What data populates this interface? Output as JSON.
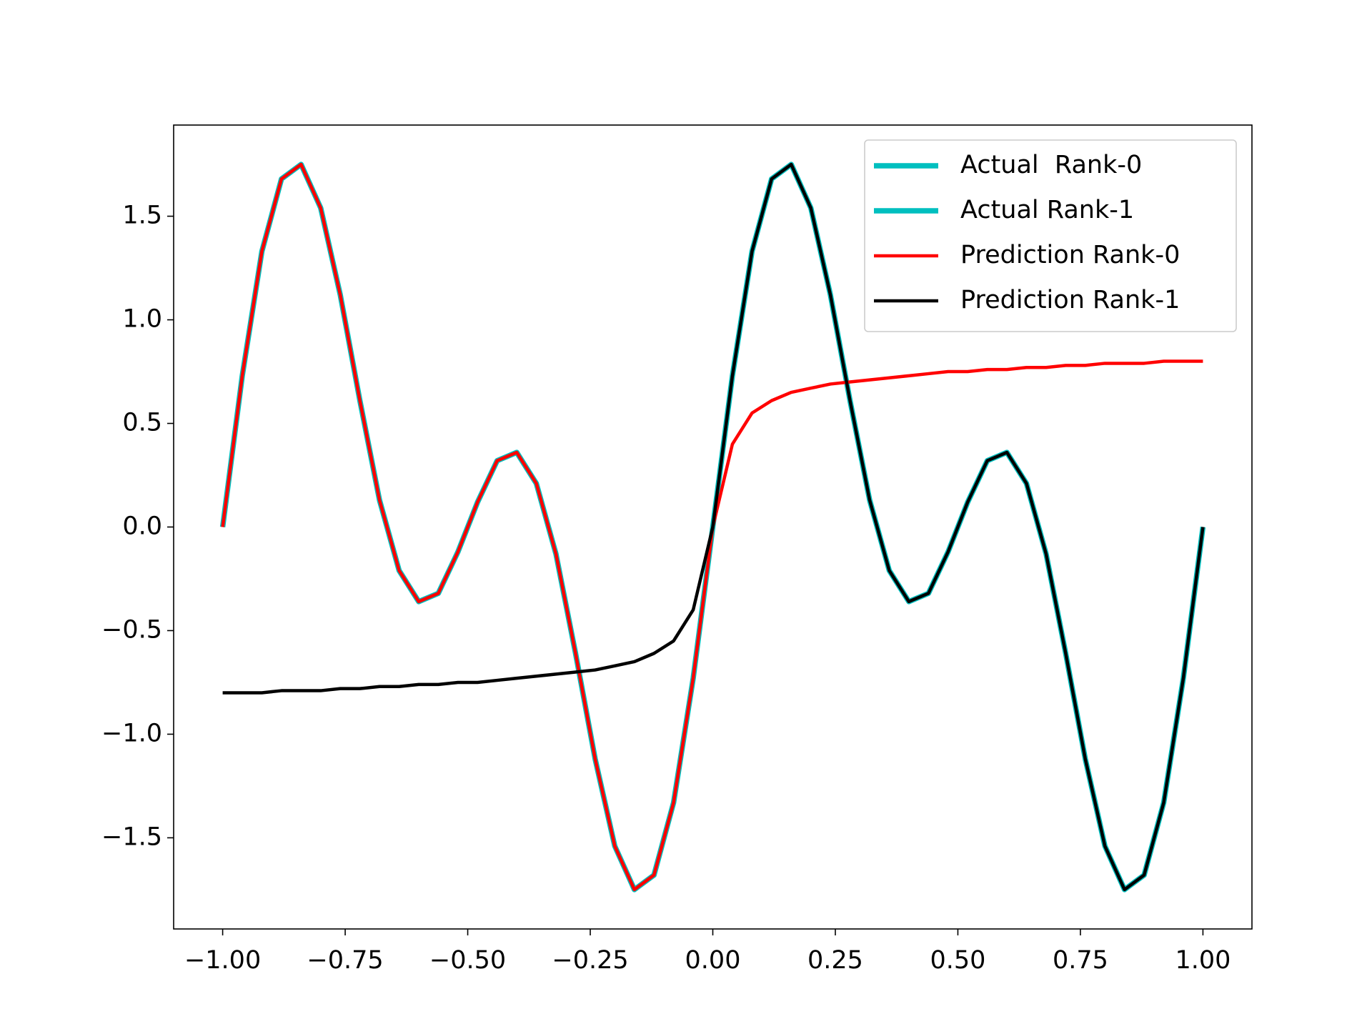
{
  "chart_data": {
    "type": "line",
    "x": [
      -1.0,
      -0.96,
      -0.92,
      -0.88,
      -0.84,
      -0.8,
      -0.76,
      -0.72,
      -0.68,
      -0.64,
      -0.6,
      -0.56,
      -0.52,
      -0.48,
      -0.44,
      -0.4,
      -0.36,
      -0.32,
      -0.28,
      -0.24,
      -0.2,
      -0.16,
      -0.12,
      -0.08,
      -0.04,
      0.0,
      0.04,
      0.08,
      0.12,
      0.16,
      0.2,
      0.24,
      0.28,
      0.32,
      0.36,
      0.4,
      0.44,
      0.48,
      0.52,
      0.56,
      0.6,
      0.64,
      0.68,
      0.72,
      0.76,
      0.8,
      0.84,
      0.88,
      0.92,
      0.96,
      1.0
    ],
    "series": [
      {
        "name": "Actual  Rank-0",
        "color": "#00bfbf",
        "linewidth": 7.5,
        "values": [
          0,
          0.73,
          1.33,
          1.68,
          1.75,
          1.54,
          1.12,
          0.61,
          0.13,
          -0.21,
          -0.36,
          -0.32,
          -0.12,
          0.12,
          0.32,
          0.36,
          0.21,
          -0.13,
          -0.61,
          -1.12,
          -1.54,
          -1.75,
          -1.68,
          -1.33,
          -0.73,
          0,
          null,
          null,
          null,
          null,
          null,
          null,
          null,
          null,
          null,
          null,
          null,
          null,
          null,
          null,
          null,
          null,
          null,
          null,
          null,
          null,
          null,
          null,
          null,
          null,
          null
        ]
      },
      {
        "name": "Actual Rank-1",
        "color": "#00bfbf",
        "linewidth": 7.5,
        "values": [
          null,
          null,
          null,
          null,
          null,
          null,
          null,
          null,
          null,
          null,
          null,
          null,
          null,
          null,
          null,
          null,
          null,
          null,
          null,
          null,
          null,
          null,
          null,
          null,
          null,
          0,
          0.73,
          1.33,
          1.68,
          1.75,
          1.54,
          1.12,
          0.61,
          0.13,
          -0.21,
          -0.36,
          -0.32,
          -0.12,
          0.12,
          0.32,
          0.36,
          0.21,
          -0.13,
          -0.61,
          -1.12,
          -1.54,
          -1.75,
          -1.68,
          -1.33,
          -0.73,
          0
        ]
      },
      {
        "name": "Prediction Rank-0",
        "color": "#ff0000",
        "linewidth": 4.5,
        "values": [
          0,
          0.73,
          1.33,
          1.68,
          1.75,
          1.54,
          1.12,
          0.61,
          0.13,
          -0.21,
          -0.36,
          -0.32,
          -0.12,
          0.12,
          0.32,
          0.36,
          0.21,
          -0.13,
          -0.61,
          -1.12,
          -1.54,
          -1.75,
          -1.68,
          -1.33,
          -0.73,
          0,
          0.4,
          0.55,
          0.61,
          0.65,
          0.67,
          0.69,
          0.7,
          0.71,
          0.72,
          0.73,
          0.74,
          0.75,
          0.75,
          0.76,
          0.76,
          0.77,
          0.77,
          0.78,
          0.78,
          0.79,
          0.79,
          0.79,
          0.8,
          0.8,
          0.8
        ]
      },
      {
        "name": "Prediction Rank-1",
        "color": "#000000",
        "linewidth": 4.5,
        "values": [
          -0.8,
          -0.8,
          -0.8,
          -0.79,
          -0.79,
          -0.79,
          -0.78,
          -0.78,
          -0.77,
          -0.77,
          -0.76,
          -0.76,
          -0.75,
          -0.75,
          -0.74,
          -0.73,
          -0.72,
          -0.71,
          -0.7,
          -0.69,
          -0.67,
          -0.65,
          -0.61,
          -0.55,
          -0.4,
          0,
          0.73,
          1.33,
          1.68,
          1.75,
          1.54,
          1.12,
          0.61,
          0.13,
          -0.21,
          -0.36,
          -0.32,
          -0.12,
          0.12,
          0.32,
          0.36,
          0.21,
          -0.13,
          -0.61,
          -1.12,
          -1.54,
          -1.75,
          -1.68,
          -1.33,
          -0.73,
          0
        ]
      }
    ],
    "xlim": [
      -1.1,
      1.1
    ],
    "ylim": [
      -1.94,
      1.94
    ],
    "xticks": [
      {
        "value": -1,
        "label": "−1.00"
      },
      {
        "value": -0.75,
        "label": "−0.75"
      },
      {
        "value": -0.5,
        "label": "−0.50"
      },
      {
        "value": -0.25,
        "label": "−0.25"
      },
      {
        "value": 0,
        "label": "0.00"
      },
      {
        "value": 0.25,
        "label": "0.25"
      },
      {
        "value": 0.5,
        "label": "0.50"
      },
      {
        "value": 0.75,
        "label": "0.75"
      },
      {
        "value": 1,
        "label": "1.00"
      }
    ],
    "yticks": [
      {
        "value": -1.5,
        "label": "−1.5"
      },
      {
        "value": -1,
        "label": "−1.0"
      },
      {
        "value": -0.5,
        "label": "−0.5"
      },
      {
        "value": 0,
        "label": "0.0"
      },
      {
        "value": 0.5,
        "label": "0.5"
      },
      {
        "value": 1,
        "label": "1.0"
      },
      {
        "value": 1.5,
        "label": "1.5"
      }
    ],
    "legend": "upper right"
  }
}
